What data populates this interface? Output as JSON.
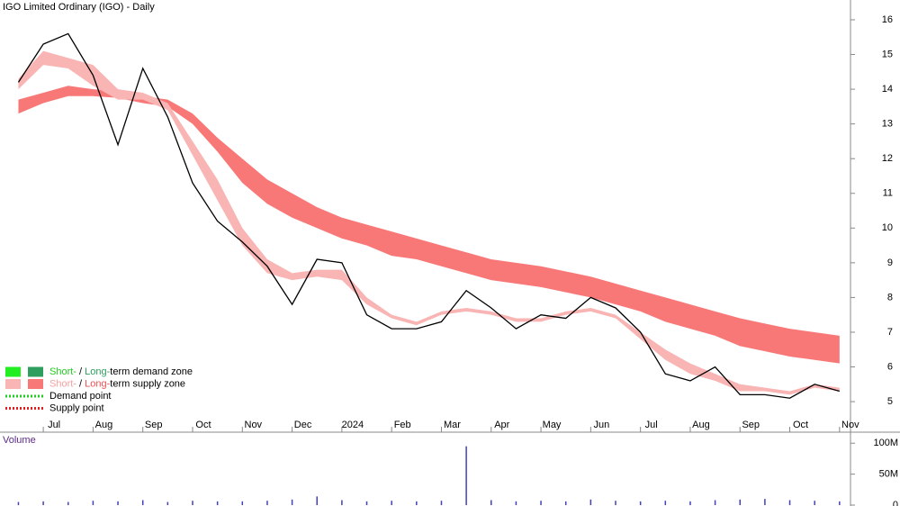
{
  "chart_data": [
    {
      "type": "line",
      "title": "IGO Limited Ordinary (IGO) - Daily",
      "x": [
        -0.5,
        0,
        0.5,
        1,
        1.5,
        2,
        2.5,
        3,
        3.5,
        4,
        4.5,
        5,
        5.5,
        6,
        6.5,
        7,
        7.5,
        8,
        8.5,
        9,
        9.5,
        10,
        10.5,
        11,
        11.5,
        12,
        12.5,
        13,
        13.5,
        14,
        14.5,
        15,
        15.5,
        16
      ],
      "xlim": [
        -0.87,
        16.22
      ],
      "xticks": [
        {
          "value": 0,
          "label": "Jul"
        },
        {
          "value": 1,
          "label": "Aug"
        },
        {
          "value": 2,
          "label": "Sep"
        },
        {
          "value": 3,
          "label": "Oct"
        },
        {
          "value": 4,
          "label": "Nov"
        },
        {
          "value": 5,
          "label": "Dec"
        },
        {
          "value": 6,
          "label": "2024"
        },
        {
          "value": 7,
          "label": "Feb"
        },
        {
          "value": 8,
          "label": "Mar"
        },
        {
          "value": 9,
          "label": "Apr"
        },
        {
          "value": 10,
          "label": "May"
        },
        {
          "value": 11,
          "label": "Jun"
        },
        {
          "value": 12,
          "label": "Jul"
        },
        {
          "value": 13,
          "label": "Aug"
        },
        {
          "value": 14,
          "label": "Sep"
        },
        {
          "value": 15,
          "label": "Oct"
        },
        {
          "value": 16,
          "label": "Nov"
        }
      ],
      "ylim": [
        4.12,
        16.57
      ],
      "yticks": [
        5,
        6,
        7,
        8,
        9,
        10,
        11,
        12,
        13,
        14,
        15,
        16
      ],
      "series": [
        {
          "type": "line",
          "color": "#000000",
          "values": [
            14.2,
            15.3,
            15.6,
            14.4,
            12.4,
            14.6,
            13.2,
            11.3,
            10.2,
            9.6,
            8.9,
            7.8,
            9.1,
            9.0,
            7.5,
            7.1,
            7.1,
            7.3,
            8.2,
            7.7,
            7.1,
            7.5,
            7.4,
            8.0,
            7.7,
            7.0,
            5.8,
            5.6,
            6.0,
            5.2,
            5.2,
            5.1,
            5.5,
            5.3
          ]
        },
        {
          "type": "band",
          "color": "#f9b4b4",
          "upper": [
            14.3,
            15.1,
            14.9,
            14.7,
            14.0,
            13.9,
            13.6,
            12.5,
            11.4,
            10.0,
            9.1,
            8.7,
            8.8,
            8.8,
            8.0,
            7.5,
            7.3,
            7.6,
            7.7,
            7.6,
            7.4,
            7.4,
            7.6,
            7.7,
            7.5,
            7.0,
            6.5,
            6.1,
            5.8,
            5.5,
            5.4,
            5.3,
            5.5,
            5.4
          ],
          "lower": [
            14.0,
            14.7,
            14.6,
            14.1,
            13.7,
            13.7,
            13.4,
            12.1,
            10.8,
            9.5,
            8.7,
            8.5,
            8.6,
            8.5,
            7.8,
            7.4,
            7.2,
            7.5,
            7.6,
            7.5,
            7.3,
            7.3,
            7.5,
            7.6,
            7.4,
            6.8,
            6.2,
            5.8,
            5.6,
            5.3,
            5.3,
            5.2,
            5.4,
            5.3
          ]
        },
        {
          "type": "band",
          "color": "#f87878",
          "upper": [
            13.7,
            13.9,
            14.1,
            14.0,
            13.95,
            13.8,
            13.7,
            13.3,
            12.6,
            12.0,
            11.4,
            11.0,
            10.6,
            10.3,
            10.1,
            9.9,
            9.7,
            9.5,
            9.3,
            9.1,
            9.0,
            8.9,
            8.75,
            8.6,
            8.4,
            8.2,
            8.0,
            7.8,
            7.6,
            7.4,
            7.25,
            7.1,
            7.0,
            6.9
          ],
          "lower": [
            13.3,
            13.6,
            13.8,
            13.8,
            13.75,
            13.6,
            13.5,
            13.0,
            12.2,
            11.3,
            10.7,
            10.3,
            10.0,
            9.7,
            9.5,
            9.2,
            9.1,
            8.9,
            8.7,
            8.5,
            8.4,
            8.3,
            8.15,
            8.0,
            7.8,
            7.6,
            7.3,
            7.1,
            6.9,
            6.6,
            6.45,
            6.3,
            6.2,
            6.1
          ]
        }
      ],
      "legend": [
        {
          "swatches": [
            "#22ee22",
            "#2e9e5e"
          ],
          "parts": [
            {
              "text": "Short-",
              "color": "#22cc22"
            },
            {
              "text": " / "
            },
            {
              "text": "Long-",
              "color": "#2e9e5e"
            },
            {
              "text": "term demand zone"
            }
          ]
        },
        {
          "swatches": [
            "#f9b4b4",
            "#f87878"
          ],
          "parts": [
            {
              "text": "Short-",
              "color": "#f9a0a0"
            },
            {
              "text": " / "
            },
            {
              "text": "Long-",
              "color": "#f05050"
            },
            {
              "text": "term supply zone"
            }
          ]
        },
        {
          "dots": "#22cc22",
          "parts": [
            {
              "text": "Demand point"
            }
          ]
        },
        {
          "dots": "#dd2222",
          "parts": [
            {
              "text": "Supply point"
            }
          ]
        }
      ]
    },
    {
      "type": "bar",
      "title": "Volume",
      "color": "#4040c0",
      "x": [
        -0.5,
        0,
        0.5,
        1,
        1.5,
        2,
        2.5,
        3,
        3.5,
        4,
        4.5,
        5,
        5.5,
        6,
        6.5,
        7,
        7.5,
        8,
        8.5,
        9,
        9.5,
        10,
        10.5,
        11,
        11.5,
        12,
        12.5,
        13,
        13.5,
        14,
        14.5,
        15,
        15.5,
        16
      ],
      "values": [
        5,
        6,
        5,
        7,
        6,
        8,
        5,
        7,
        6,
        6,
        7,
        9,
        14,
        8,
        6,
        7,
        6,
        7,
        95,
        8,
        6,
        7,
        6,
        9,
        7,
        6,
        7,
        6,
        8,
        9,
        10,
        8,
        7,
        6
      ],
      "ylim": [
        0,
        112
      ],
      "yticks": [
        {
          "value": 0,
          "label": "0"
        },
        {
          "value": 50,
          "label": "50M"
        },
        {
          "value": 100,
          "label": "100M"
        }
      ]
    }
  ]
}
